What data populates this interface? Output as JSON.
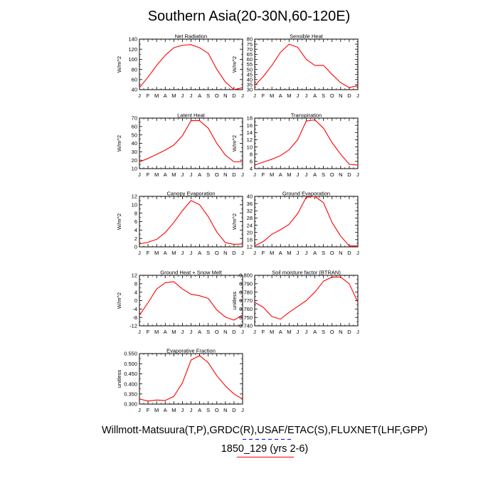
{
  "title": "Southern Asia(20-30N,60-120E)",
  "footer": {
    "line1": "Willmott-Matsuura(T,P),GRDC(R),USAF/ETAC(S),FLUXNET(LHF,GPP)",
    "line2": "1850_129 (yrs 2-6)",
    "colors": {
      "case_line": "#ff0000",
      "obs_line": "#0000ff"
    }
  },
  "line_color": "#ff0000",
  "chart_data": [
    {
      "type": "line",
      "title": "Net Radiation",
      "ylabel": "W/m^2",
      "categories": [
        "J",
        "F",
        "M",
        "A",
        "M",
        "J",
        "J",
        "A",
        "S",
        "O",
        "N",
        "D",
        "J"
      ],
      "ylim": [
        40,
        140
      ],
      "yticks": [
        40,
        60,
        80,
        100,
        120,
        140
      ],
      "series": [
        {
          "values": [
            44,
            65,
            88,
            108,
            123,
            128,
            129,
            123,
            112,
            80,
            55,
            40,
            44
          ]
        }
      ]
    },
    {
      "type": "line",
      "title": "Sensible Heat",
      "ylabel": "W/m^2",
      "categories": [
        "J",
        "F",
        "M",
        "A",
        "M",
        "J",
        "J",
        "A",
        "S",
        "O",
        "N",
        "D",
        "J"
      ],
      "ylim": [
        30,
        80
      ],
      "yticks": [
        30,
        35,
        40,
        45,
        50,
        55,
        60,
        65,
        70,
        75,
        80
      ],
      "series": [
        {
          "values": [
            34,
            43,
            54,
            67,
            75,
            72,
            60,
            54,
            54,
            45,
            37,
            32,
            34
          ]
        }
      ]
    },
    {
      "type": "line",
      "title": "Latent Heat",
      "ylabel": "W/m^2",
      "categories": [
        "J",
        "F",
        "M",
        "A",
        "M",
        "J",
        "J",
        "A",
        "S",
        "O",
        "N",
        "D",
        "J"
      ],
      "ylim": [
        10,
        70
      ],
      "yticks": [
        10,
        20,
        30,
        40,
        50,
        60,
        70
      ],
      "series": [
        {
          "values": [
            18,
            22,
            27,
            32,
            38,
            49,
            67,
            67,
            58,
            40,
            26,
            18,
            18
          ]
        }
      ]
    },
    {
      "type": "line",
      "title": "Transpiration",
      "ylabel": "W/m^2",
      "categories": [
        "J",
        "F",
        "M",
        "A",
        "M",
        "J",
        "J",
        "A",
        "S",
        "O",
        "N",
        "D",
        "J"
      ],
      "ylim": [
        4,
        18
      ],
      "yticks": [
        4,
        6,
        8,
        10,
        12,
        14,
        16,
        18
      ],
      "series": [
        {
          "values": [
            5.0,
            5.8,
            6.6,
            7.6,
            9.2,
            12.0,
            17.2,
            17.5,
            15.2,
            11.2,
            8.0,
            5.2,
            5.0
          ]
        }
      ]
    },
    {
      "type": "line",
      "title": "Canopy Evaporation",
      "ylabel": "W/m^2",
      "categories": [
        "J",
        "F",
        "M",
        "A",
        "M",
        "J",
        "J",
        "A",
        "S",
        "O",
        "N",
        "D",
        "J"
      ],
      "ylim": [
        0,
        12
      ],
      "yticks": [
        0,
        2,
        4,
        6,
        8,
        10,
        12
      ],
      "series": [
        {
          "values": [
            0.7,
            1.1,
            1.8,
            3.4,
            5.8,
            8.6,
            11.0,
            10.0,
            7.2,
            3.5,
            1.0,
            0.6,
            0.7
          ]
        }
      ]
    },
    {
      "type": "line",
      "title": "Ground Evaporation",
      "ylabel": "W/m^2",
      "categories": [
        "J",
        "F",
        "M",
        "A",
        "M",
        "J",
        "J",
        "A",
        "S",
        "O",
        "N",
        "D",
        "J"
      ],
      "ylim": [
        12,
        40
      ],
      "yticks": [
        12,
        16,
        20,
        24,
        28,
        32,
        36,
        40
      ],
      "series": [
        {
          "values": [
            12.5,
            15,
            19,
            21.5,
            24.5,
            30.5,
            39.5,
            40,
            36.5,
            25.5,
            18,
            12.5,
            12.5
          ]
        }
      ]
    },
    {
      "type": "line",
      "title": "Ground Heat + Snow Melt",
      "ylabel": "W/m^2",
      "categories": [
        "J",
        "F",
        "M",
        "A",
        "M",
        "J",
        "J",
        "A",
        "S",
        "O",
        "N",
        "D",
        "J"
      ],
      "ylim": [
        -12,
        12
      ],
      "yticks": [
        -12,
        -8,
        -4,
        0,
        4,
        8,
        12
      ],
      "series": [
        {
          "values": [
            -7,
            -1,
            5.5,
            8.5,
            9,
            5.5,
            3,
            2.3,
            1,
            -4.5,
            -7.8,
            -9.3,
            -6.8
          ]
        }
      ]
    },
    {
      "type": "line",
      "title": "Soil moisture factor (BTRAN)",
      "ylabel": "unitless",
      "categories": [
        "J",
        "F",
        "M",
        "A",
        "M",
        "J",
        "J",
        "A",
        "S",
        "O",
        "N",
        "D",
        "J"
      ],
      "ylim": [
        0.74,
        0.8
      ],
      "yticks": [
        0.74,
        0.75,
        0.76,
        0.77,
        0.78,
        0.79,
        0.8
      ],
      "ytick_labels": [
        "0.740",
        "0.750",
        "0.760",
        "0.770",
        "0.780",
        "0.790",
        "0.800"
      ],
      "series": [
        {
          "values": [
            0.768,
            0.762,
            0.751,
            0.748,
            0.756,
            0.763,
            0.77,
            0.78,
            0.793,
            0.798,
            0.798,
            0.79,
            0.768
          ]
        }
      ]
    },
    {
      "type": "line",
      "title": "Evaporative Fraction",
      "ylabel": "unitless",
      "categories": [
        "J",
        "F",
        "M",
        "A",
        "M",
        "J",
        "J",
        "A",
        "S",
        "O",
        "N",
        "D",
        "J"
      ],
      "ylim": [
        0.3,
        0.55
      ],
      "yticks": [
        0.3,
        0.35,
        0.4,
        0.45,
        0.5,
        0.55
      ],
      "ytick_labels": [
        "0.300",
        "0.350",
        "0.400",
        "0.450",
        "0.500",
        "0.550"
      ],
      "series": [
        {
          "values": [
            0.325,
            0.315,
            0.32,
            0.318,
            0.338,
            0.405,
            0.518,
            0.54,
            0.505,
            0.44,
            0.39,
            0.35,
            0.325
          ]
        }
      ]
    }
  ]
}
